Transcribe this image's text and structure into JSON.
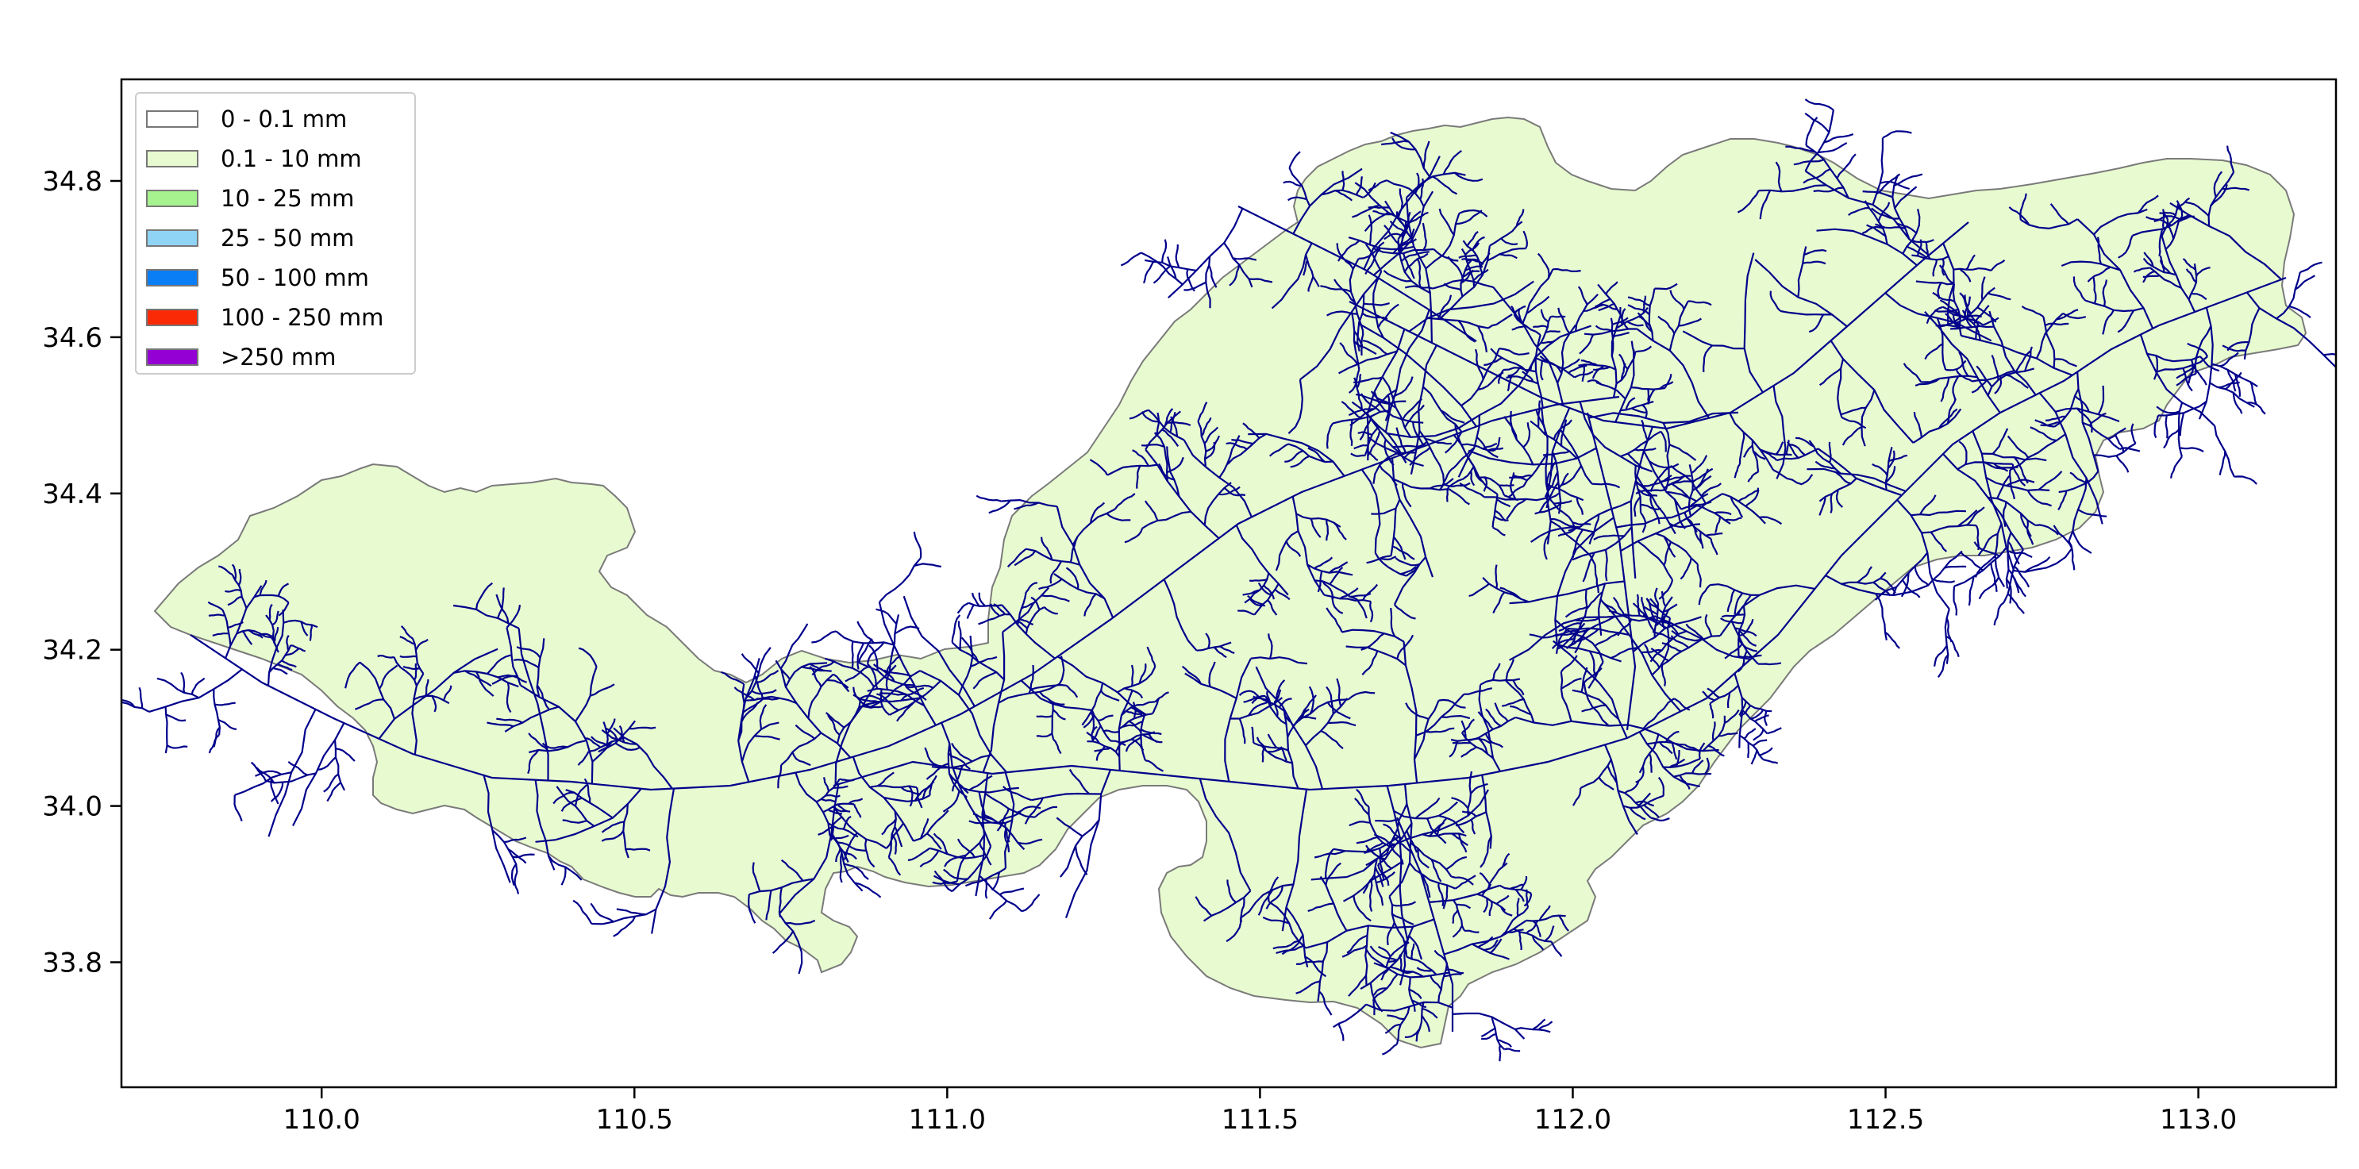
{
  "title": "",
  "colors": {
    "basin_fill": "#e8fbd0",
    "basin_edge": "#7a7a7a",
    "river": "#00008b",
    "frame": "#000000"
  },
  "map": {
    "x_ticks": [
      "110.0",
      "110.5",
      "111.0",
      "111.5",
      "112.0",
      "112.5",
      "113.0"
    ],
    "y_ticks": [
      "34.8",
      "34.6",
      "34.4",
      "34.2",
      "34.0",
      "33.8"
    ],
    "xlim": [
      109.68,
      113.22
    ],
    "ylim": [
      33.64,
      34.93
    ]
  },
  "legend": {
    "placement": "upper-left",
    "items": [
      {
        "label": "0 - 0.1 mm",
        "color": "#ffffff"
      },
      {
        "label": "0.1 - 10 mm",
        "color": "#e8fbd0"
      },
      {
        "label": "10 - 25 mm",
        "color": "#a6f28f"
      },
      {
        "label": "25 - 50 mm",
        "color": "#8fd3f5"
      },
      {
        "label": "50 - 100 mm",
        "color": "#0a7ef5"
      },
      {
        "label": "100 - 250 mm",
        "color": "#fa2a06"
      },
      {
        "label": ">250 mm",
        "color": "#9400d3"
      }
    ]
  }
}
